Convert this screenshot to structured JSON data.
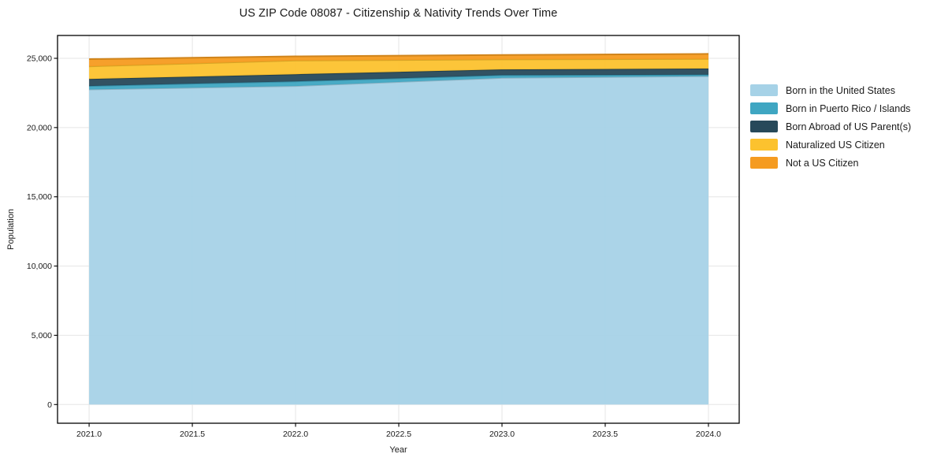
{
  "figure": {
    "background": "#ffffff",
    "text_color": "#1a1a1a",
    "grid_color": "#e5e5e5",
    "spine_color": "#000000"
  },
  "chart_data": {
    "type": "area",
    "stacked": true,
    "title": "US ZIP Code 08087 - Citizenship & Nativity Trends Over Time",
    "xlabel": "Year",
    "ylabel": "Population",
    "grid": true,
    "legend_position": "right-outside",
    "x": [
      2021,
      2022,
      2023,
      2024
    ],
    "series": [
      {
        "name": "Born in the United States",
        "color": "#a6d2e7",
        "values": [
          22750,
          23000,
          23590,
          23710
        ]
      },
      {
        "name": "Born in Puerto Rico / Islands",
        "color": "#3fa6c2",
        "values": [
          250,
          340,
          190,
          110
        ]
      },
      {
        "name": "Born Abroad of US Parent(s)",
        "color": "#27495a",
        "values": [
          510,
          510,
          420,
          440
        ]
      },
      {
        "name": "Naturalized US Citizen",
        "color": "#fcc22e",
        "values": [
          910,
          990,
          720,
          700
        ]
      },
      {
        "name": "Not a US Citizen",
        "color": "#f59b20",
        "values": [
          520,
          300,
          320,
          360
        ]
      }
    ],
    "totals": [
      24940,
      25140,
      25240,
      25320
    ],
    "xlim": [
      2020.847,
      2024.149
    ],
    "ylim": [
      -1350,
      26650
    ],
    "xticks": {
      "values": [
        2021.0,
        2021.5,
        2022.0,
        2022.5,
        2023.0,
        2023.5,
        2024.0
      ],
      "labels": [
        "2021.0",
        "2021.5",
        "2022.0",
        "2022.5",
        "2023.0",
        "2023.5",
        "2024.0"
      ]
    },
    "yticks": {
      "values": [
        0,
        5000,
        10000,
        15000,
        20000,
        25000
      ],
      "labels": [
        "0",
        "5,000",
        "10,000",
        "15,000",
        "20,000",
        "25,000"
      ]
    }
  }
}
